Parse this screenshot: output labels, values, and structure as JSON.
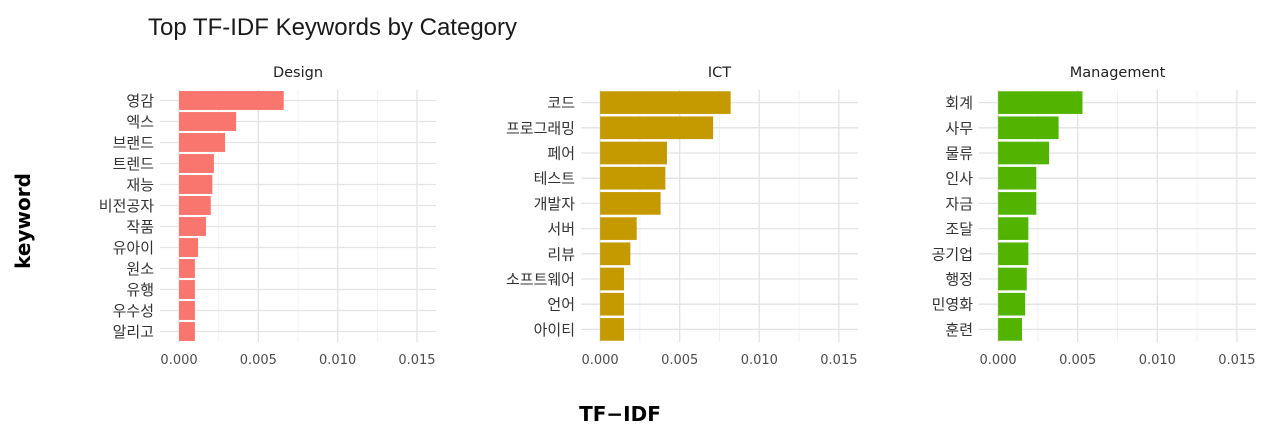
{
  "chart_data": {
    "type": "bar",
    "orientation": "horizontal",
    "title": "Top TF-IDF Keywords by Category",
    "xlabel": "TF−IDF",
    "ylabel": "keyword",
    "xlim": [
      -0.0012,
      0.0162
    ],
    "x_ticks": [
      0.0,
      0.005,
      0.01,
      0.015
    ],
    "x_tick_labels": [
      "0.000",
      "0.005",
      "0.010",
      "0.015"
    ],
    "grid": true,
    "panels": [
      {
        "name": "Design",
        "color": "#F8766D",
        "categories": [
          "영감",
          "엑스",
          "브랜드",
          "트렌드",
          "재능",
          "비전공자",
          "작품",
          "유아이",
          "원소",
          "유행",
          "우수성",
          "알리고"
        ],
        "values": [
          0.0066,
          0.0036,
          0.0029,
          0.0022,
          0.0021,
          0.002,
          0.0017,
          0.0012,
          0.001,
          0.001,
          0.001,
          0.001
        ]
      },
      {
        "name": "ICT",
        "color": "#C59A00",
        "categories": [
          "코드",
          "프로그래밍",
          "페어",
          "테스트",
          "개발자",
          "서버",
          "리뷰",
          "소프트웨어",
          "언어",
          "아이티"
        ],
        "values": [
          0.0082,
          0.0071,
          0.0042,
          0.0041,
          0.0038,
          0.0023,
          0.0019,
          0.0015,
          0.0015,
          0.0015
        ]
      },
      {
        "name": "Management",
        "color": "#53B400",
        "categories": [
          "회계",
          "사무",
          "물류",
          "인사",
          "자금",
          "조달",
          "공기업",
          "행정",
          "민영화",
          "훈련"
        ],
        "values": [
          0.0053,
          0.0038,
          0.0032,
          0.0024,
          0.0024,
          0.0019,
          0.0019,
          0.0018,
          0.0017,
          0.0015
        ]
      }
    ]
  }
}
